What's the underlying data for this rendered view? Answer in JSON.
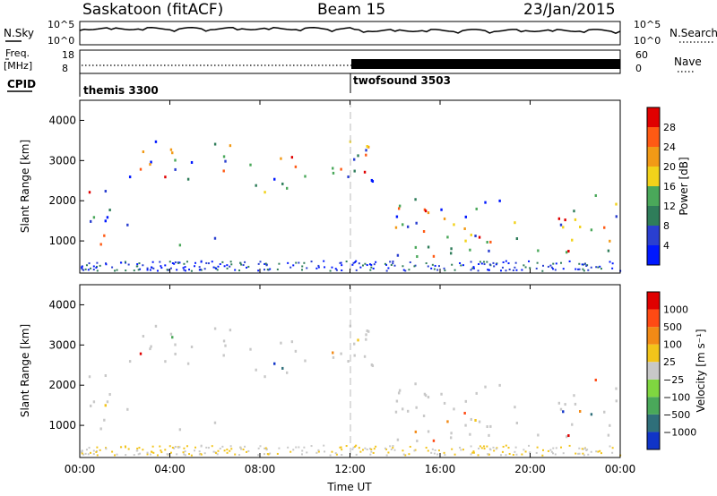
{
  "header": {
    "station": "Saskatoon (fitACF)",
    "beam": "Beam 15",
    "date": "23/Jan/2015"
  },
  "side_labels": {
    "nsky": "N.Sky",
    "nsearch": "N.Search",
    "freq_line1": "Freq.",
    "freq_line2": "[MHz]",
    "nave": "Nave",
    "cpid": "CPID"
  },
  "noise_panel": {
    "tick_top": "10^5",
    "tick_bottom": "10^0",
    "right_tick_top": "10^5",
    "right_tick_bottom": "10^0"
  },
  "freq_panel": {
    "left_ticks": [
      "18",
      "8"
    ],
    "right_ticks": [
      "60",
      "0"
    ]
  },
  "cpid_panel": {
    "modes": [
      {
        "label": "themis 3300"
      },
      {
        "label": "twofsound 3503"
      }
    ]
  },
  "axes": {
    "xlabel": "Time UT",
    "ylabel": "Slant Range [km]",
    "xticks": [
      "00:00",
      "04:00",
      "08:00",
      "12:00",
      "16:00",
      "20:00",
      "00:00"
    ],
    "yticks": [
      "1000",
      "2000",
      "3000",
      "4000"
    ]
  },
  "chart_data": [
    {
      "type": "heatmap",
      "title": "",
      "xlabel": "",
      "ylabel": "Slant Range [km]",
      "xlim": [
        0,
        24
      ],
      "ylim": [
        200,
        4500
      ],
      "colorbar": {
        "label": "Power [dB]",
        "ticks": [
          "4",
          "8",
          "12",
          "16",
          "20",
          "24",
          "28"
        ]
      },
      "colors": [
        "#0018ff",
        "#2a3fd0",
        "#2f7d5a",
        "#4aa85a",
        "#f2d21a",
        "#f29a16",
        "#ff5a14",
        "#e00000"
      ],
      "regions": [
        {
          "name": "",
          "t0": 0.3,
          "t1": 2.1,
          "r0": 650,
          "r1": 2300
        },
        {
          "name": "",
          "t0": 2.0,
          "t1": 7.0,
          "r0": 2500,
          "r1": 3500
        },
        {
          "name": "",
          "t0": 4.3,
          "t1": 6.3,
          "r0": 800,
          "r1": 1100
        },
        {
          "name": "",
          "t0": 7.5,
          "t1": 11.6,
          "r0": 2200,
          "r1": 3100
        },
        {
          "name": "",
          "t0": 11.8,
          "t1": 14.0,
          "r0": 2000,
          "r1": 3500
        },
        {
          "name": "",
          "t0": 14.0,
          "t1": 24.0,
          "r0": 600,
          "r1": 2200
        }
      ]
    },
    {
      "type": "heatmap",
      "title": "",
      "xlabel": "Time UT",
      "ylabel": "Slant Range [km]",
      "xlim": [
        0,
        24
      ],
      "ylim": [
        200,
        4500
      ],
      "colorbar": {
        "label": "Velocity [m s⁻¹]",
        "ticks": [
          "1000",
          "500",
          "100",
          "25",
          "−25",
          "−100",
          "−500",
          "−1000"
        ]
      },
      "colors": [
        "#1034c8",
        "#2f6f7a",
        "#4aa85a",
        "#7fd640",
        "#c8c8c8",
        "#f2c41a",
        "#f28a16",
        "#ff4a14",
        "#e00000"
      ]
    }
  ]
}
